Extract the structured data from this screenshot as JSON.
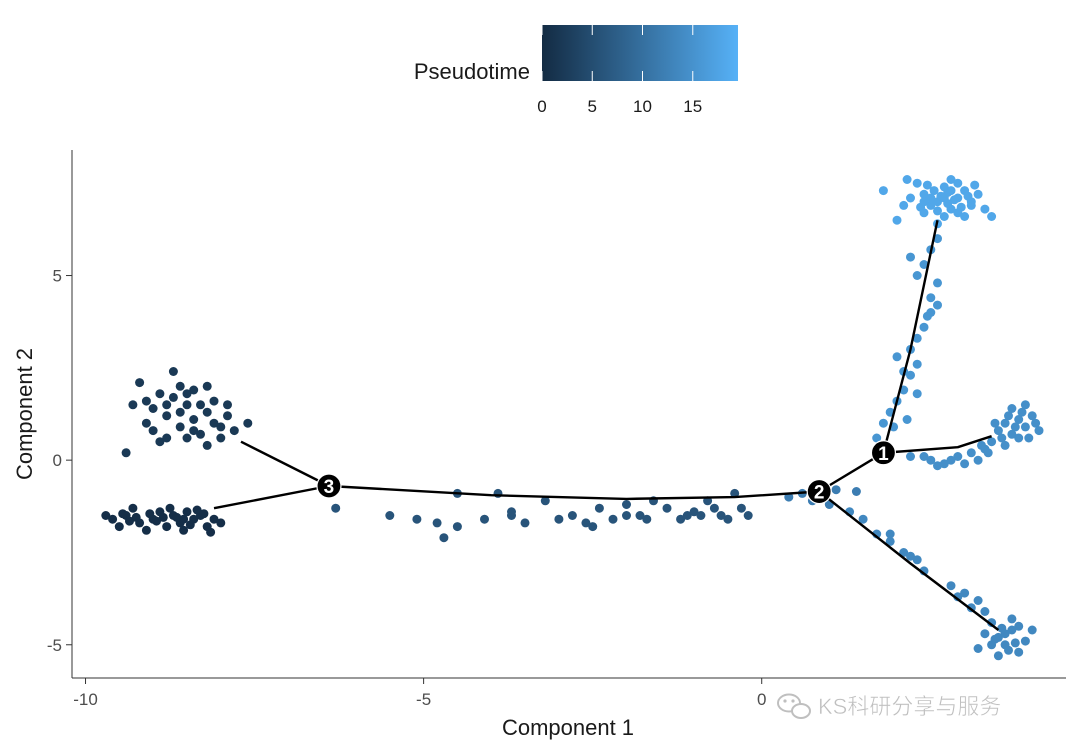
{
  "chart_data": {
    "type": "scatter",
    "title": "",
    "xlabel": "Component 1",
    "ylabel": "Component 2",
    "xlim": [
      -10.2,
      4.5
    ],
    "ylim": [
      -5.9,
      8.4
    ],
    "x_ticks": [
      -10,
      -5,
      0
    ],
    "y_ticks": [
      -5,
      0,
      5
    ],
    "grid": false,
    "legend": {
      "title": "Pseudotime",
      "placement": "top",
      "range": [
        0,
        19.5
      ],
      "ticks": [
        0,
        5,
        10,
        15
      ],
      "color_low": "#132B43",
      "color_high": "#56B1F7"
    },
    "trajectory": [
      {
        "branch": "3-left-top",
        "x": [
          -7.7,
          -6.4
        ],
        "y": [
          0.5,
          -0.7
        ]
      },
      {
        "branch": "3-left-bottom",
        "x": [
          -8.1,
          -6.4
        ],
        "y": [
          -1.3,
          -0.7
        ]
      },
      {
        "branch": "3-2",
        "x": [
          -6.4,
          -4.0,
          -2.0,
          -0.4,
          0.85
        ],
        "y": [
          -0.7,
          -0.95,
          -1.05,
          -1.0,
          -0.85
        ]
      },
      {
        "branch": "2-1",
        "x": [
          0.85,
          1.8
        ],
        "y": [
          -0.85,
          0.2
        ]
      },
      {
        "branch": "1-top",
        "x": [
          1.8,
          2.2,
          2.6
        ],
        "y": [
          0.2,
          3.0,
          6.5
        ]
      },
      {
        "branch": "1-right",
        "x": [
          1.8,
          2.9,
          3.4
        ],
        "y": [
          0.2,
          0.35,
          0.65
        ]
      },
      {
        "branch": "2-bottom",
        "x": [
          0.85,
          2.2,
          3.5
        ],
        "y": [
          -0.85,
          -2.8,
          -4.6
        ]
      }
    ],
    "branch_points": [
      {
        "label": "1",
        "x": 1.8,
        "y": 0.2
      },
      {
        "label": "2",
        "x": 0.85,
        "y": -0.85
      },
      {
        "label": "3",
        "x": -6.4,
        "y": -0.7
      }
    ],
    "clusters": [
      {
        "name": "left-top",
        "pseudotime": 2.0,
        "points": [
          [
            -9.1,
            1.0
          ],
          [
            -9.0,
            1.4
          ],
          [
            -8.8,
            1.2
          ],
          [
            -8.7,
            1.7
          ],
          [
            -8.6,
            0.9
          ],
          [
            -8.5,
            1.5
          ],
          [
            -8.4,
            1.1
          ],
          [
            -8.3,
            0.7
          ],
          [
            -8.2,
            1.3
          ],
          [
            -8.1,
            1.6
          ],
          [
            -8.0,
            0.9
          ],
          [
            -8.8,
            0.6
          ],
          [
            -8.6,
            2.0
          ],
          [
            -9.2,
            2.1
          ],
          [
            -8.4,
            1.9
          ],
          [
            -8.9,
            0.5
          ],
          [
            -7.9,
            1.2
          ],
          [
            -8.5,
            0.6
          ],
          [
            -9.3,
            1.5
          ],
          [
            -8.7,
            2.4
          ],
          [
            -8.3,
            1.5
          ],
          [
            -8.0,
            0.6
          ],
          [
            -7.6,
            1.0
          ],
          [
            -9.4,
            0.2
          ],
          [
            -7.8,
            0.8
          ],
          [
            -8.2,
            0.4
          ],
          [
            -8.6,
            1.3
          ],
          [
            -8.9,
            1.8
          ],
          [
            -8.1,
            1.0
          ],
          [
            -9.0,
            0.8
          ],
          [
            -7.9,
            1.5
          ],
          [
            -8.4,
            0.8
          ],
          [
            -8.8,
            1.5
          ],
          [
            -8.2,
            2.0
          ],
          [
            -9.1,
            1.6
          ],
          [
            -8.5,
            1.8
          ]
        ]
      },
      {
        "name": "left-bottom",
        "pseudotime": 0.5,
        "points": [
          [
            -9.6,
            -1.6
          ],
          [
            -9.4,
            -1.5
          ],
          [
            -9.2,
            -1.7
          ],
          [
            -9.0,
            -1.6
          ],
          [
            -8.9,
            -1.4
          ],
          [
            -8.8,
            -1.8
          ],
          [
            -8.7,
            -1.5
          ],
          [
            -8.6,
            -1.7
          ],
          [
            -8.5,
            -1.4
          ],
          [
            -8.4,
            -1.6
          ],
          [
            -8.3,
            -1.5
          ],
          [
            -8.2,
            -1.8
          ],
          [
            -8.1,
            -1.6
          ],
          [
            -9.3,
            -1.3
          ],
          [
            -9.1,
            -1.9
          ],
          [
            -8.95,
            -1.65
          ],
          [
            -8.75,
            -1.3
          ],
          [
            -8.55,
            -1.9
          ],
          [
            -8.35,
            -1.35
          ],
          [
            -9.5,
            -1.8
          ],
          [
            -8.0,
            -1.7
          ],
          [
            -9.45,
            -1.45
          ],
          [
            -8.65,
            -1.55
          ],
          [
            -8.45,
            -1.75
          ],
          [
            -8.85,
            -1.55
          ],
          [
            -9.05,
            -1.45
          ],
          [
            -8.25,
            -1.45
          ],
          [
            -9.25,
            -1.55
          ],
          [
            -8.15,
            -1.95
          ],
          [
            -9.7,
            -1.5
          ],
          [
            -9.35,
            -1.65
          ],
          [
            -8.55,
            -1.6
          ]
        ]
      },
      {
        "name": "middle-stem",
        "pseudotime": 6.0,
        "points": [
          [
            -6.3,
            -1.3
          ],
          [
            -5.5,
            -1.5
          ],
          [
            -5.1,
            -1.6
          ],
          [
            -4.8,
            -1.7
          ],
          [
            -4.7,
            -2.1
          ],
          [
            -4.5,
            -1.8
          ],
          [
            -4.5,
            -0.9
          ],
          [
            -4.1,
            -1.6
          ],
          [
            -3.9,
            -0.9
          ],
          [
            -3.7,
            -1.5
          ],
          [
            -3.5,
            -1.7
          ],
          [
            -3.2,
            -1.1
          ],
          [
            -3.0,
            -1.6
          ],
          [
            -2.8,
            -1.5
          ],
          [
            -2.6,
            -1.7
          ],
          [
            -2.4,
            -1.3
          ],
          [
            -2.2,
            -1.6
          ],
          [
            -2.0,
            -1.2
          ],
          [
            -1.8,
            -1.5
          ],
          [
            -1.7,
            -1.6
          ],
          [
            -1.6,
            -1.1
          ],
          [
            -1.4,
            -1.3
          ],
          [
            -1.2,
            -1.6
          ],
          [
            -1.0,
            -1.4
          ],
          [
            -0.9,
            -1.5
          ],
          [
            -0.8,
            -1.1
          ],
          [
            -0.6,
            -1.5
          ],
          [
            -0.5,
            -1.6
          ],
          [
            -0.4,
            -0.9
          ],
          [
            -0.3,
            -1.3
          ],
          [
            -0.2,
            -1.5
          ],
          [
            -2.5,
            -1.8
          ],
          [
            -3.7,
            -1.4
          ],
          [
            -1.1,
            -1.5
          ],
          [
            -2.0,
            -1.5
          ],
          [
            -0.7,
            -1.3
          ]
        ]
      },
      {
        "name": "near-node-2",
        "pseudotime": 12.0,
        "points": [
          [
            0.4,
            -1.0
          ],
          [
            0.6,
            -0.9
          ],
          [
            0.75,
            -1.1
          ],
          [
            1.0,
            -1.2
          ],
          [
            1.1,
            -0.8
          ],
          [
            1.4,
            -0.85
          ]
        ]
      },
      {
        "name": "top-stem",
        "pseudotime": 15.5,
        "points": [
          [
            1.7,
            0.6
          ],
          [
            1.8,
            1.0
          ],
          [
            1.9,
            1.3
          ],
          [
            2.0,
            1.6
          ],
          [
            2.1,
            1.9
          ],
          [
            2.2,
            2.3
          ],
          [
            2.3,
            2.6
          ],
          [
            2.0,
            2.8
          ],
          [
            2.2,
            3.0
          ],
          [
            2.3,
            3.3
          ],
          [
            2.4,
            3.6
          ],
          [
            2.5,
            4.0
          ],
          [
            2.5,
            4.4
          ],
          [
            2.6,
            4.8
          ],
          [
            2.3,
            5.0
          ],
          [
            2.4,
            5.3
          ],
          [
            2.5,
            5.7
          ],
          [
            2.6,
            6.0
          ],
          [
            2.2,
            5.5
          ],
          [
            2.6,
            4.2
          ],
          [
            2.15,
            1.1
          ],
          [
            1.95,
            0.9
          ],
          [
            2.3,
            1.8
          ],
          [
            2.1,
            2.4
          ],
          [
            2.45,
            3.9
          ]
        ]
      },
      {
        "name": "top-cluster",
        "pseudotime": 18.0,
        "points": [
          [
            2.4,
            7.2
          ],
          [
            2.6,
            7.0
          ],
          [
            2.7,
            7.4
          ],
          [
            2.8,
            6.8
          ],
          [
            2.9,
            7.1
          ],
          [
            3.0,
            7.3
          ],
          [
            2.5,
            6.9
          ],
          [
            2.3,
            7.5
          ],
          [
            2.7,
            6.6
          ],
          [
            3.1,
            6.9
          ],
          [
            2.2,
            7.1
          ],
          [
            2.8,
            7.6
          ],
          [
            3.2,
            7.2
          ],
          [
            2.6,
            6.4
          ],
          [
            3.0,
            6.6
          ],
          [
            2.4,
            6.7
          ],
          [
            2.9,
            7.5
          ],
          [
            3.3,
            6.8
          ],
          [
            2.1,
            6.9
          ],
          [
            2.65,
            7.15
          ],
          [
            2.85,
            7.05
          ],
          [
            2.75,
            6.95
          ],
          [
            2.55,
            7.3
          ],
          [
            2.95,
            6.85
          ],
          [
            3.15,
            7.45
          ],
          [
            2.35,
            6.85
          ],
          [
            1.8,
            7.3
          ],
          [
            2.0,
            6.5
          ],
          [
            3.4,
            6.6
          ],
          [
            2.45,
            7.45
          ],
          [
            2.15,
            7.6
          ],
          [
            2.75,
            7.25
          ],
          [
            3.05,
            7.15
          ],
          [
            2.6,
            6.75
          ],
          [
            2.9,
            6.7
          ],
          [
            2.7,
            7.1
          ],
          [
            2.5,
            7.1
          ],
          [
            2.8,
            7.3
          ],
          [
            3.1,
            7.0
          ],
          [
            2.4,
            7.0
          ]
        ]
      },
      {
        "name": "right-branch",
        "pseudotime": 14.5,
        "points": [
          [
            1.9,
            0.2
          ],
          [
            2.2,
            0.1
          ],
          [
            2.5,
            0.0
          ],
          [
            2.7,
            -0.1
          ],
          [
            2.9,
            0.1
          ],
          [
            3.0,
            -0.1
          ],
          [
            3.1,
            0.2
          ],
          [
            3.2,
            0.0
          ],
          [
            3.3,
            0.3
          ],
          [
            3.4,
            0.5
          ],
          [
            3.5,
            0.8
          ],
          [
            3.6,
            1.0
          ],
          [
            3.7,
            0.7
          ],
          [
            3.8,
            1.1
          ],
          [
            3.9,
            0.9
          ],
          [
            4.0,
            1.2
          ],
          [
            3.55,
            0.6
          ],
          [
            3.75,
            0.9
          ],
          [
            3.85,
            1.3
          ],
          [
            3.65,
            1.2
          ],
          [
            3.95,
            0.6
          ],
          [
            4.05,
            1.0
          ],
          [
            3.45,
            1.0
          ],
          [
            3.7,
            1.4
          ],
          [
            3.9,
            1.5
          ],
          [
            2.4,
            0.1
          ],
          [
            2.8,
            0.0
          ],
          [
            3.35,
            0.2
          ],
          [
            3.6,
            0.4
          ],
          [
            3.8,
            0.6
          ],
          [
            2.6,
            -0.15
          ],
          [
            4.1,
            0.8
          ],
          [
            3.25,
            0.4
          ]
        ]
      },
      {
        "name": "bottom-branch",
        "pseudotime": 13.5,
        "points": [
          [
            1.3,
            -1.4
          ],
          [
            1.5,
            -1.6
          ],
          [
            1.7,
            -2.0
          ],
          [
            1.9,
            -2.2
          ],
          [
            2.1,
            -2.5
          ],
          [
            2.3,
            -2.7
          ],
          [
            2.4,
            -3.0
          ],
          [
            2.8,
            -3.4
          ],
          [
            3.0,
            -3.6
          ],
          [
            3.2,
            -3.8
          ],
          [
            3.3,
            -4.1
          ],
          [
            3.4,
            -4.4
          ],
          [
            3.5,
            -4.8
          ],
          [
            3.6,
            -5.0
          ],
          [
            3.7,
            -4.6
          ],
          [
            3.8,
            -5.2
          ],
          [
            3.9,
            -4.9
          ],
          [
            3.3,
            -4.7
          ],
          [
            3.5,
            -5.3
          ],
          [
            3.7,
            -4.3
          ],
          [
            3.4,
            -5.0
          ],
          [
            3.6,
            -4.7
          ],
          [
            3.8,
            -4.5
          ],
          [
            3.2,
            -5.1
          ],
          [
            3.55,
            -4.55
          ],
          [
            3.75,
            -4.95
          ],
          [
            3.45,
            -4.85
          ],
          [
            3.65,
            -5.15
          ],
          [
            4.0,
            -4.6
          ],
          [
            3.1,
            -4.0
          ],
          [
            2.9,
            -3.7
          ],
          [
            1.9,
            -2.0
          ],
          [
            2.2,
            -2.6
          ]
        ]
      }
    ],
    "watermark": "KS科研分享与服务"
  }
}
